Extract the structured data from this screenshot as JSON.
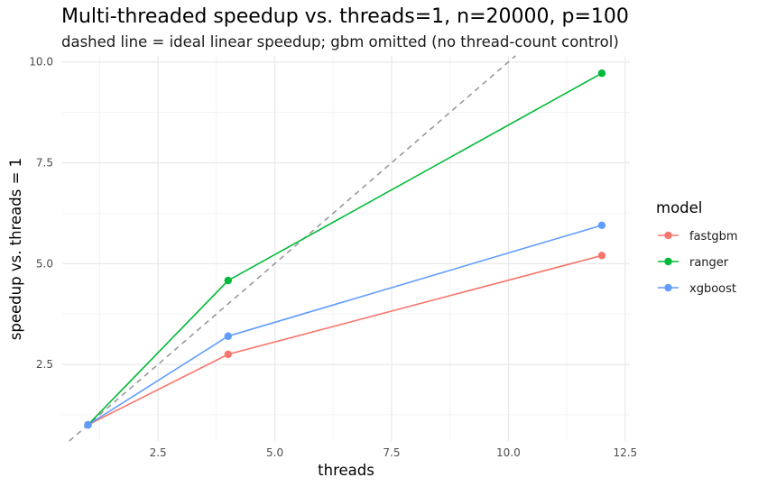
{
  "chart_data": {
    "type": "line",
    "title": "Multi-threaded speedup vs. threads=1, n=20000, p=100",
    "subtitle": "dashed line = ideal linear speedup; gbm omitted (no thread-count control)",
    "xlabel": "threads",
    "ylabel": "speedup vs. threads = 1",
    "xlim": [
      0.45,
      12.6
    ],
    "ylim": [
      0.6,
      10.15
    ],
    "x_ticks": [
      2.5,
      5.0,
      7.5,
      10.0,
      12.5
    ],
    "y_ticks": [
      2.5,
      5.0,
      7.5,
      10.0
    ],
    "x_tick_labels": [
      "2.5",
      "5.0",
      "7.5",
      "10.0",
      "12.5"
    ],
    "y_tick_labels": [
      "2.5",
      "5.0",
      "7.5",
      "10.0"
    ],
    "grid": true,
    "legend_position": "right",
    "legend_title": "model",
    "x": [
      1,
      4,
      12
    ],
    "series": [
      {
        "name": "fastgbm",
        "values": [
          1.0,
          2.75,
          5.2
        ],
        "color": "#F8766D"
      },
      {
        "name": "ranger",
        "values": [
          1.0,
          4.58,
          9.72
        ],
        "color": "#00BA38"
      },
      {
        "name": "xgboost",
        "values": [
          1.0,
          3.2,
          5.95
        ],
        "color": "#619CFF"
      }
    ],
    "reference_line": {
      "kind": "ideal linear speedup",
      "slope": 1,
      "intercept": 0,
      "style": "dashed",
      "color": "#999999"
    }
  }
}
